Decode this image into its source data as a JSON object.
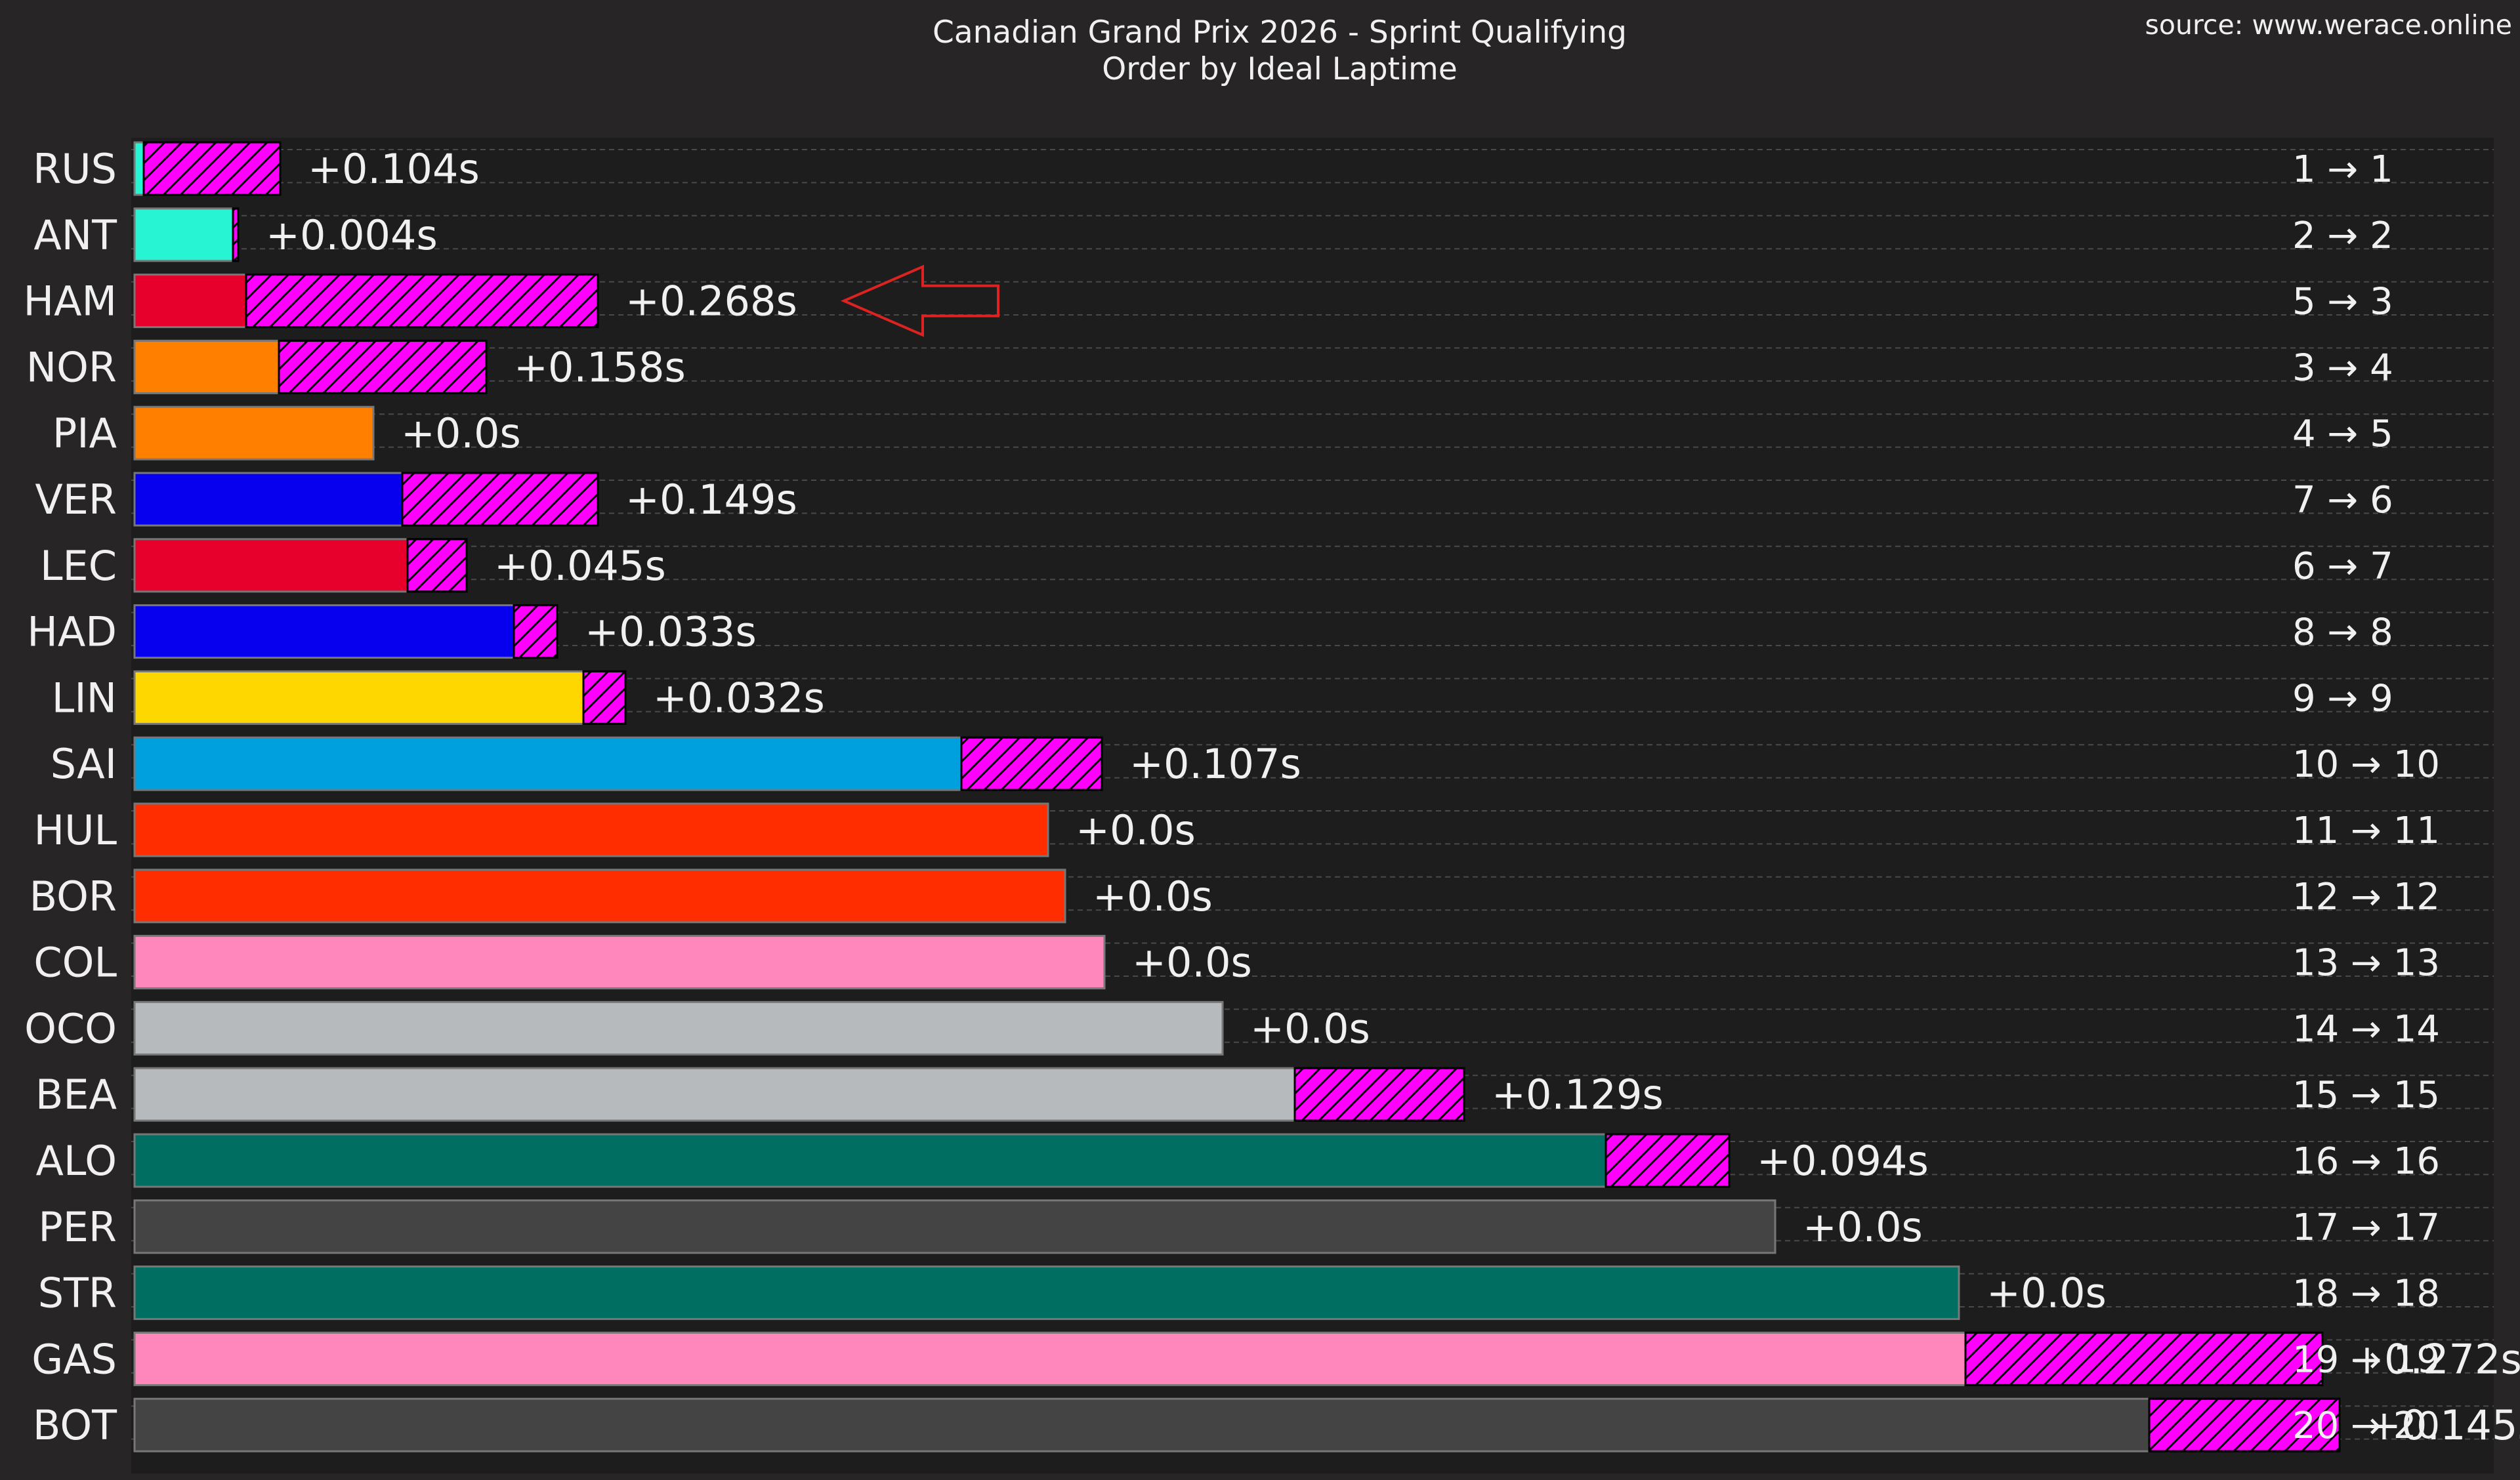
{
  "header": {
    "title": "Canadian Grand Prix 2026 - Sprint Qualifying",
    "subtitle": "Order by Ideal Laptime",
    "source": "source: www.werace.online"
  },
  "chart_data": {
    "type": "bar",
    "orientation": "horizontal",
    "title": "Canadian Grand Prix 2026 - Sprint Qualifying",
    "subtitle": "Order by Ideal Laptime",
    "categories": [
      "RUS",
      "ANT",
      "HAM",
      "NOR",
      "PIA",
      "VER",
      "LEC",
      "HAD",
      "LIN",
      "SAI",
      "HUL",
      "BOR",
      "COL",
      "OCO",
      "BEA",
      "ALO",
      "PER",
      "STR",
      "GAS",
      "BOT"
    ],
    "series": [
      {
        "values": [
          0.007,
          0.075,
          0.085,
          0.11,
          0.182,
          0.204,
          0.208,
          0.289,
          0.342,
          0.63,
          0.696,
          0.709,
          0.739,
          0.829,
          0.884,
          1.121,
          1.25,
          1.39,
          1.395,
          1.535
        ],
        "colors": [
          "#27f4d2",
          "#27f4d2",
          "#e8002d",
          "#ff8000",
          "#ff8000",
          "#0600ef",
          "#e8002d",
          "#0600ef",
          "#ffd700",
          "#00a0de",
          "#ff2d00",
          "#ff2d00",
          "#ff87bc",
          "#b6babd",
          "#b6babd",
          "#006f62",
          "#444444",
          "#006f62",
          "#ff87bc",
          "#444444"
        ]
      },
      {
        "values": [
          0.104,
          0.004,
          0.268,
          0.158,
          0.0,
          0.149,
          0.045,
          0.033,
          0.032,
          0.107,
          0.0,
          0.0,
          0.0,
          0.0,
          0.129,
          0.094,
          0.0,
          0.0,
          0.272,
          0.145
        ],
        "color": "#ff00ff",
        "hatch": true
      }
    ],
    "bar_labels": [
      "+0.104s",
      "+0.004s",
      "+0.268s",
      "+0.158s",
      "+0.0s",
      "+0.149s",
      "+0.045s",
      "+0.033s",
      "+0.032s",
      "+0.107s",
      "+0.0s",
      "+0.0s",
      "+0.0s",
      "+0.0s",
      "+0.129s",
      "+0.094s",
      "+0.0s",
      "+0.0s",
      "+0.272s",
      "+0.145s"
    ],
    "position_changes": [
      "1 → 1",
      "2 → 2",
      "5 → 3",
      "3 → 4",
      "4 → 5",
      "7 → 6",
      "6 → 7",
      "8 → 8",
      "9 → 9",
      "10 → 10",
      "11 → 11",
      "12 → 12",
      "13 → 13",
      "14 → 14",
      "15 → 15",
      "16 → 16",
      "17 → 17",
      "18 → 18",
      "19 → 19",
      "20 → 20"
    ],
    "highlight": {
      "index": 2,
      "color": "#dd2222"
    },
    "xlim": [
      0,
      1.8
    ],
    "grid": "horizontal dashed",
    "background": "#1d1d1d"
  }
}
